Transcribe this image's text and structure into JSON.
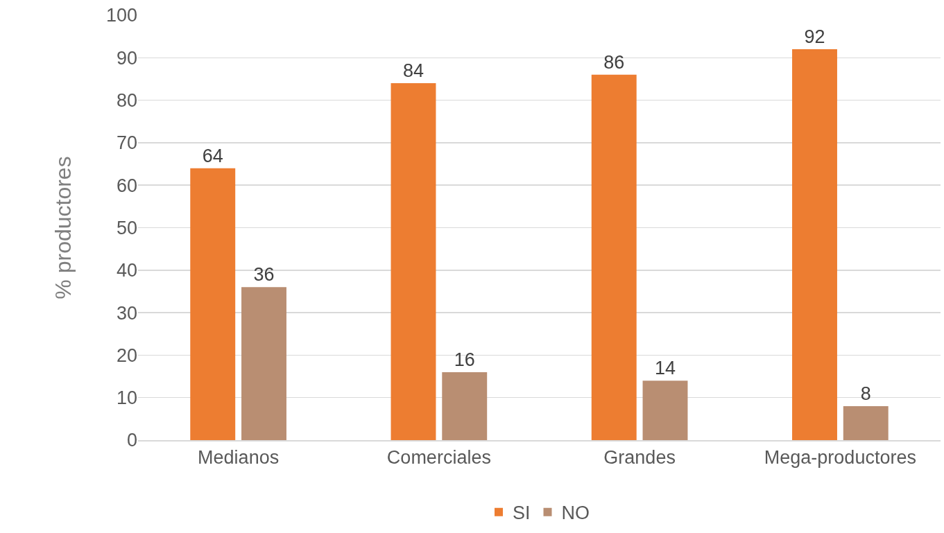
{
  "chart_data": {
    "type": "bar",
    "ylabel": "% productores",
    "categories": [
      "Medianos",
      "Comerciales",
      "Grandes",
      "Mega-productores"
    ],
    "series": [
      {
        "name": "SI",
        "color": "#ed7d31",
        "values": [
          64,
          84,
          86,
          92
        ]
      },
      {
        "name": "NO",
        "color": "#b98e72",
        "values": [
          36,
          16,
          14,
          8
        ]
      }
    ],
    "ylim": [
      0,
      100
    ],
    "yticks": [
      0,
      10,
      20,
      30,
      40,
      50,
      60,
      70,
      80,
      90,
      100
    ],
    "grid": "y",
    "legend": "bottom",
    "data_labels": true
  }
}
